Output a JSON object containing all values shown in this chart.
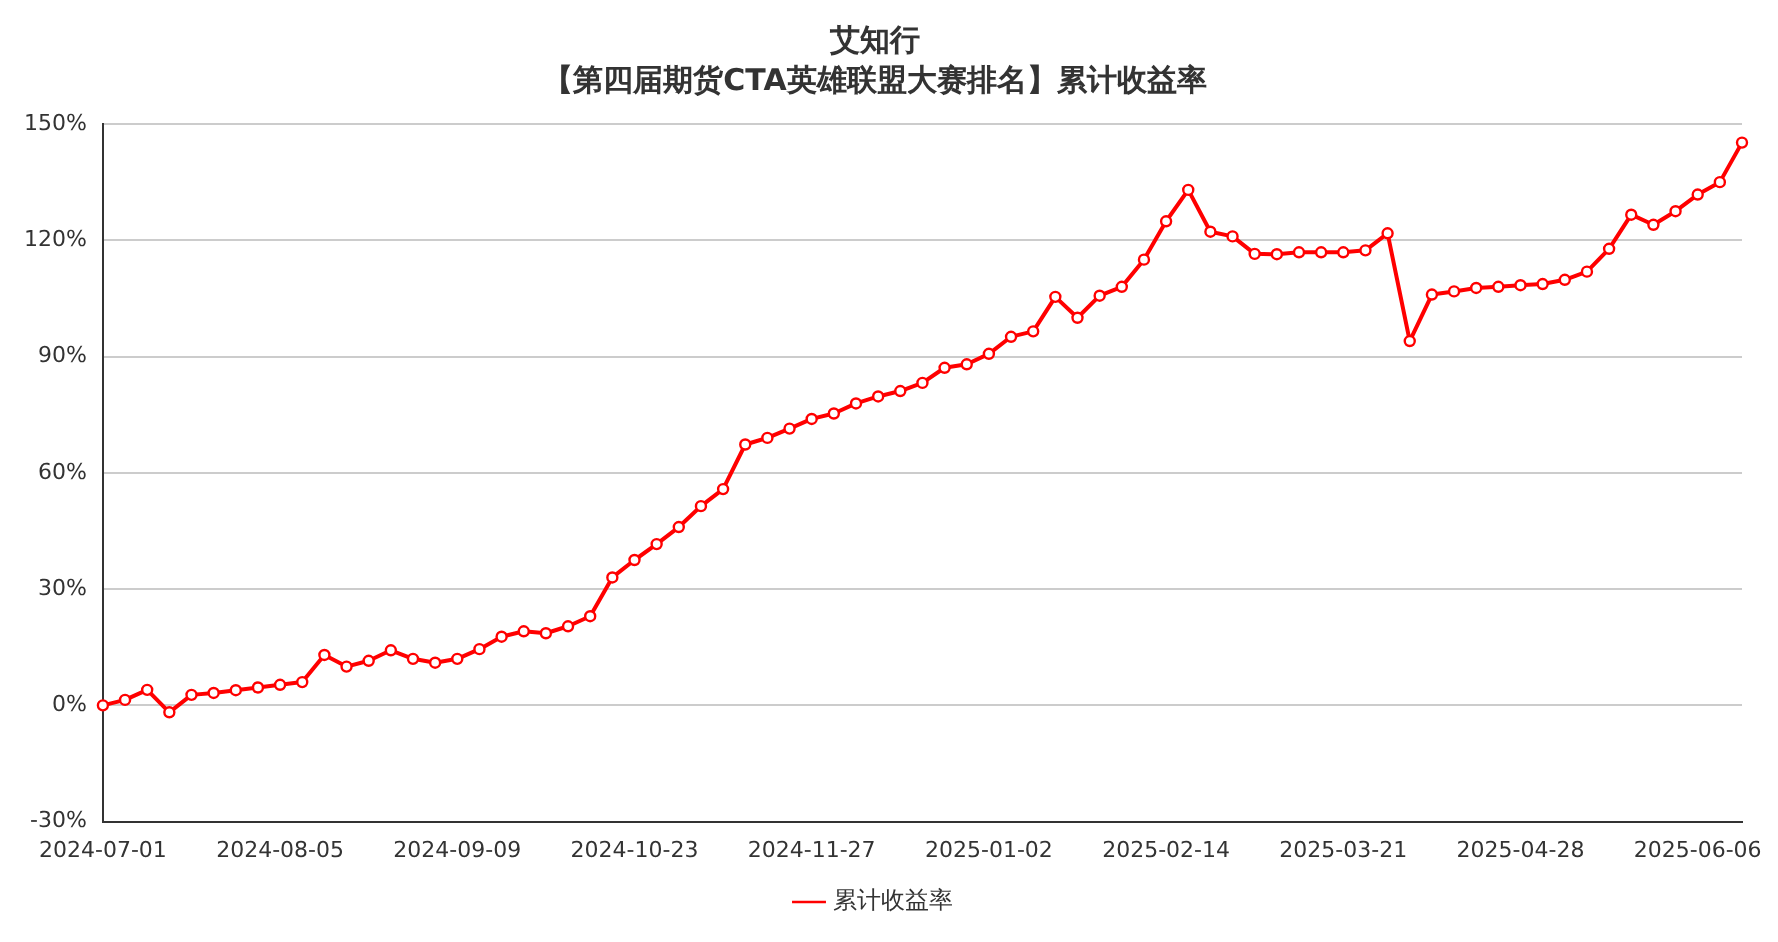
{
  "chart_data": {
    "type": "line",
    "title": "艾知行",
    "subtitle": "【第四届期货CTA英雄联盟大赛排名】累计收益率",
    "categories": [
      "2024-07-01",
      null,
      null,
      null,
      null,
      null,
      null,
      null,
      "2024-08-05",
      null,
      null,
      null,
      null,
      null,
      null,
      null,
      "2024-09-09",
      null,
      null,
      null,
      null,
      null,
      null,
      null,
      "2024-10-23",
      null,
      null,
      null,
      null,
      null,
      null,
      null,
      "2024-11-27",
      null,
      null,
      null,
      null,
      null,
      null,
      null,
      "2025-01-02",
      null,
      null,
      null,
      null,
      null,
      null,
      null,
      "2025-02-14",
      null,
      null,
      null,
      null,
      null,
      null,
      null,
      "2025-03-21",
      null,
      null,
      null,
      null,
      null,
      null,
      null,
      "2025-04-28",
      null,
      null,
      null,
      null,
      null,
      null,
      null,
      "2025-06-06",
      null,
      null
    ],
    "series": [
      {
        "name": "累计收益率",
        "color": "#ff0000",
        "values": [
          0,
          1.4,
          4,
          -1.8,
          2.7,
          3.2,
          3.9,
          4.6,
          5.3,
          6,
          13,
          10,
          11.5,
          14.2,
          12,
          11,
          12,
          14.5,
          17.7,
          19.1,
          18.6,
          20.4,
          23,
          33,
          37.5,
          41.6,
          46,
          51.4,
          55.8,
          67.3,
          69,
          71.4,
          73.9,
          75.3,
          77.9,
          79.7,
          81.1,
          83.2,
          87.1,
          88,
          90.7,
          95.1,
          96.5,
          105.4,
          100,
          105.7,
          108,
          115,
          124.9,
          133,
          122.2,
          121,
          116.5,
          116.4,
          116.9,
          116.9,
          116.9,
          117.4,
          121.8,
          94,
          106,
          106.8,
          107.7,
          108,
          108.4,
          108.7,
          109.8,
          111.9,
          117.8,
          126.6,
          124,
          127.5,
          131.8,
          135,
          145.2
        ]
      }
    ],
    "ylim": [
      -30,
      150
    ],
    "yticks": [
      {
        "value": -30,
        "label": "-30%"
      },
      {
        "value": 0,
        "label": "0%"
      },
      {
        "value": 30,
        "label": "30%"
      },
      {
        "value": 60,
        "label": "60%"
      },
      {
        "value": 90,
        "label": "90%"
      },
      {
        "value": 120,
        "label": "120%"
      },
      {
        "value": 150,
        "label": "150%"
      }
    ],
    "grid": "y",
    "legend": "bottom",
    "marker": "circle",
    "line_style": "solid"
  }
}
